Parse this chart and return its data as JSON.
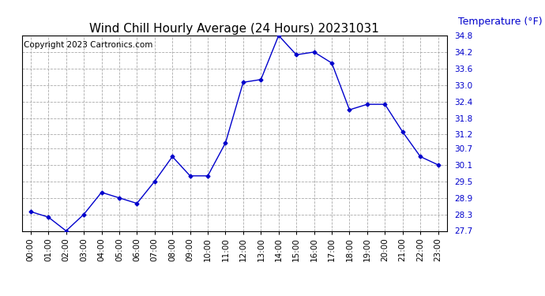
{
  "title": "Wind Chill Hourly Average (24 Hours) 20231031",
  "copyright_text": "Copyright 2023 Cartronics.com",
  "ylabel": "Temperature (°F)",
  "hours": [
    "00:00",
    "01:00",
    "02:00",
    "03:00",
    "04:00",
    "05:00",
    "06:00",
    "07:00",
    "08:00",
    "09:00",
    "10:00",
    "11:00",
    "12:00",
    "13:00",
    "14:00",
    "15:00",
    "16:00",
    "17:00",
    "18:00",
    "19:00",
    "20:00",
    "21:00",
    "22:00",
    "23:00"
  ],
  "values": [
    28.4,
    28.2,
    27.7,
    28.3,
    29.1,
    28.9,
    28.7,
    29.5,
    30.4,
    29.7,
    29.7,
    30.9,
    33.1,
    33.2,
    34.8,
    34.1,
    34.2,
    33.8,
    32.1,
    32.3,
    32.3,
    31.3,
    30.4,
    30.1
  ],
  "line_color": "#0000cc",
  "marker": "D",
  "marker_size": 2.5,
  "ylim_min": 27.7,
  "ylim_max": 34.8,
  "yticks": [
    27.7,
    28.3,
    28.9,
    29.5,
    30.1,
    30.7,
    31.2,
    31.8,
    32.4,
    33.0,
    33.6,
    34.2,
    34.8
  ],
  "grid_color": "#aaaaaa",
  "background_color": "#ffffff",
  "title_color": "#000000",
  "ylabel_color": "#0000cc",
  "copyright_color": "#000000",
  "title_fontsize": 11,
  "ylabel_fontsize": 9,
  "tick_fontsize": 7.5,
  "copyright_fontsize": 7.5
}
